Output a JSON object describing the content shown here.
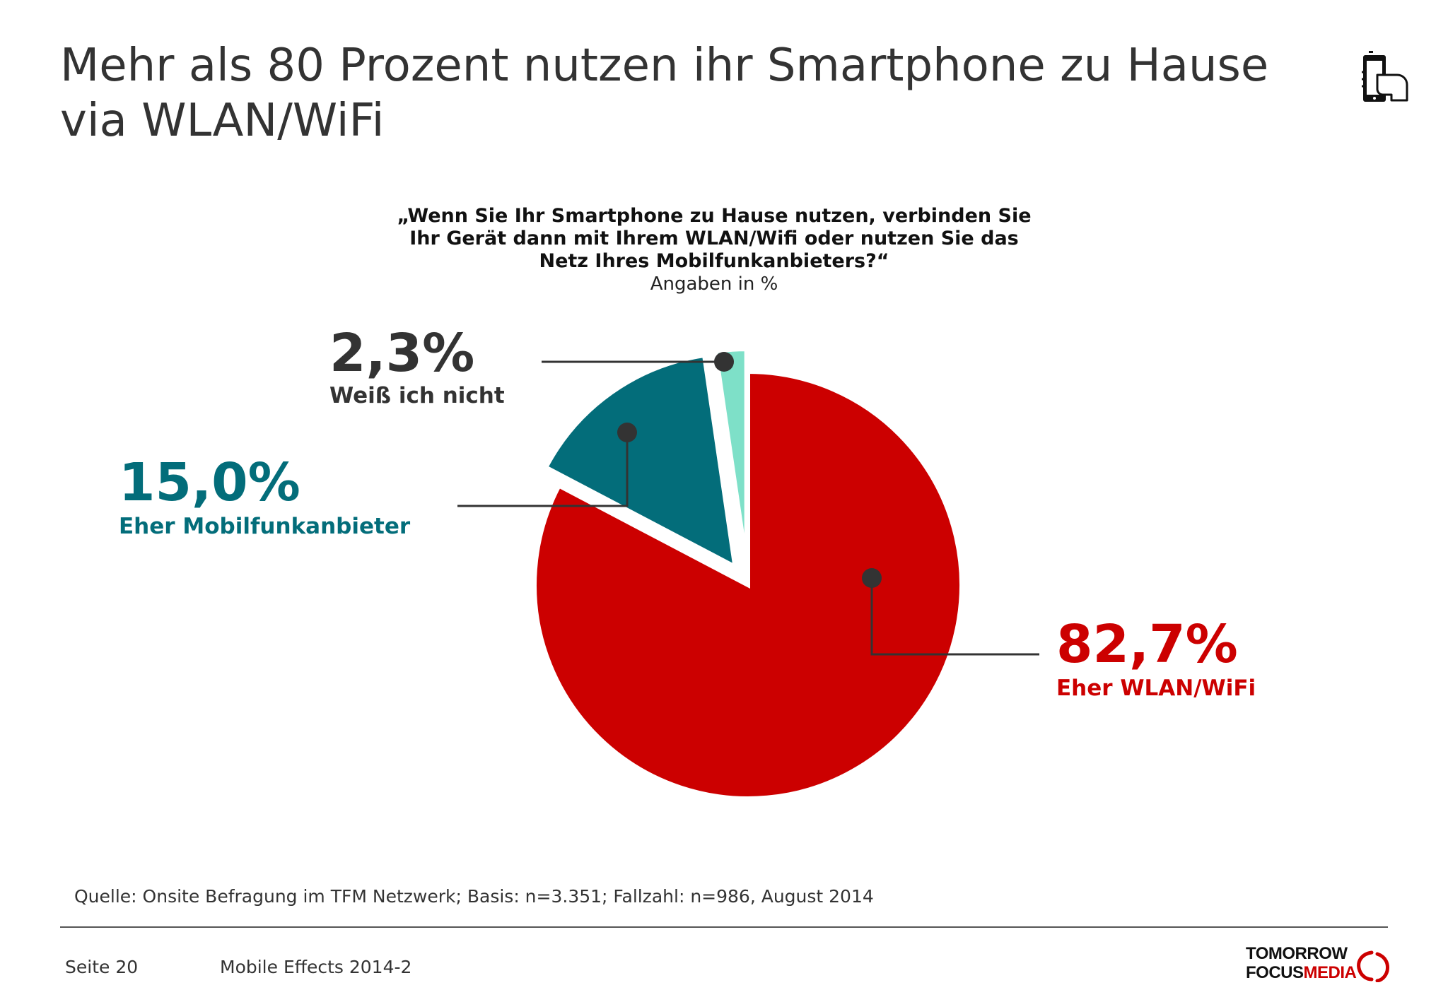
{
  "title": "Mehr als 80 Prozent nutzen ihr Smartphone zu Hause via WLAN/WiFi",
  "icon": "smartphone-hand-icon",
  "question": "„Wenn Sie Ihr Smartphone zu Hause nutzen, verbinden Sie Ihr Gerät dann mit Ihrem WLAN/Wifi oder nutzen Sie das Netz Ihres Mobilfunkanbieters?“",
  "subtitle": "Angaben in %",
  "chart_data": {
    "type": "pie",
    "slices": [
      {
        "label": "Eher WLAN/WiFi",
        "value": 82.7,
        "value_label": "82,7%",
        "color": "#cc0000"
      },
      {
        "label": "Eher Mobilfunkanbieter",
        "value": 15.0,
        "value_label": "15,0%",
        "color": "#036d7a"
      },
      {
        "label": "Weiß ich nicht",
        "value": 2.3,
        "value_label": "2,3%",
        "color": "#7ee0c8"
      }
    ],
    "start_angle_deg": 0,
    "direction": "clockwise",
    "exploded": [
      "Eher Mobilfunkanbieter",
      "Weiß ich nicht"
    ]
  },
  "source": "Quelle: Onsite Befragung im TFM Netzwerk; Basis: n=3.351; Fallzahl: n=986, August 2014",
  "footer": {
    "page": "Seite 20",
    "report": "Mobile Effects 2014-2"
  },
  "logo": {
    "line1": "TOMORROW",
    "focus": "FOCUS",
    "media": "MEDIA"
  },
  "colors": {
    "text": "#333333",
    "leader": "#333333",
    "dot": "#333333"
  }
}
